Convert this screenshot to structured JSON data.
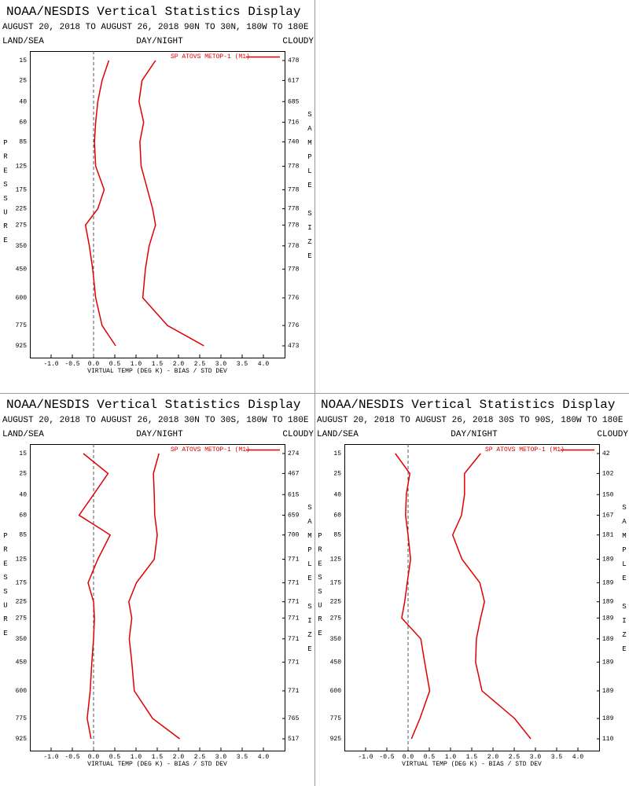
{
  "chart_data": [
    {
      "type": "line",
      "title": "NOAA/NESDIS Vertical Statistics Display",
      "subtitle": "AUGUST 20, 2018 TO AUGUST 26, 2018 90N TO 30N, 180W TO 180E",
      "land_sea_label": "LAND/SEA",
      "day_night_label": "DAY/NIGHT",
      "cloudy_label": "CLOUDY",
      "y_label": "PRESSURE",
      "y2_label": "SAMPLE SIZE",
      "x_label": "VIRTUAL TEMP (DEG K) - BIAS / STD DEV",
      "y": [
        15,
        25,
        40,
        60,
        85,
        125,
        175,
        225,
        275,
        350,
        450,
        600,
        775,
        925
      ],
      "sample_sizes": [
        478,
        617,
        685,
        716,
        740,
        778,
        778,
        778,
        778,
        778,
        778,
        776,
        776,
        473
      ],
      "series": [
        {
          "name": "SP ATOVS METOP-1 (M1)",
          "color": "#e00000",
          "values": [
            0.36,
            0.2,
            0.1,
            0.05,
            0.02,
            0.05,
            0.25,
            0.1,
            -0.19,
            -0.1,
            -0.02,
            0.05,
            0.2,
            0.52
          ],
          "std_dev": [
            1.46,
            1.14,
            1.07,
            1.18,
            1.09,
            1.12,
            1.27,
            1.39,
            1.46,
            1.31,
            1.22,
            1.16,
            1.74,
            2.6
          ]
        }
      ],
      "xlim": [
        -1.5,
        4.5
      ],
      "xticks": [
        {
          "value": -1,
          "label": "-1.0"
        },
        -0.5,
        {
          "value": 0,
          "label": "0.0"
        },
        0.5,
        {
          "value": 1,
          "label": "1.0"
        },
        1.5,
        {
          "value": 2,
          "label": "2.0"
        },
        2.5,
        {
          "value": 3,
          "label": "3.0"
        },
        3.5,
        {
          "value": 4,
          "label": "4.0"
        }
      ]
    },
    {
      "type": "line",
      "title": "NOAA/NESDIS Vertical Statistics Display",
      "subtitle": "AUGUST 20, 2018 TO AUGUST 26, 2018 30N TO 30S, 180W TO 180E",
      "land_sea_label": "LAND/SEA",
      "day_night_label": "DAY/NIGHT",
      "cloudy_label": "CLOUDY",
      "y_label": "PRESSURE",
      "y2_label": "SAMPLE SIZE",
      "x_label": "VIRTUAL TEMP (DEG K) - BIAS / STD DEV",
      "y": [
        15,
        25,
        40,
        60,
        85,
        125,
        175,
        225,
        275,
        350,
        450,
        600,
        775,
        925
      ],
      "sample_sizes": [
        274,
        467,
        615,
        659,
        700,
        771,
        771,
        771,
        771,
        771,
        771,
        771,
        765,
        517
      ],
      "series": [
        {
          "name": "SP ATOVS METOP-1 (M1)",
          "color": "#e00000",
          "values": [
            -0.24,
            0.34,
            0,
            -0.34,
            0.39,
            0.1,
            -0.13,
            0,
            0.02,
            0,
            -0.04,
            -0.08,
            -0.15,
            -0.06
          ],
          "std_dev": [
            1.54,
            1.41,
            1.43,
            1.44,
            1.5,
            1.43,
            1.01,
            0.83,
            0.9,
            0.84,
            0.9,
            0.96,
            1.39,
            2.03
          ]
        }
      ],
      "xlim": [
        -1.5,
        4.5
      ],
      "xticks": [
        {
          "value": -1,
          "label": "-1.0"
        },
        -0.5,
        {
          "value": 0,
          "label": "0.0"
        },
        0.5,
        {
          "value": 1,
          "label": "1.0"
        },
        1.5,
        {
          "value": 2,
          "label": "2.0"
        },
        2.5,
        {
          "value": 3,
          "label": "3.0"
        },
        3.5,
        {
          "value": 4,
          "label": "4.0"
        }
      ]
    },
    {
      "type": "line",
      "title": "NOAA/NESDIS Vertical Statistics Display",
      "subtitle": "AUGUST 20, 2018 TO AUGUST 26, 2018 30S TO 90S, 180W TO 180E",
      "land_sea_label": "LAND/SEA",
      "day_night_label": "DAY/NIGHT",
      "cloudy_label": "CLOUDY",
      "y_label": "PRESSURE",
      "y2_label": "SAMPLE SIZE",
      "x_label": "VIRTUAL TEMP (DEG K) - BIAS / STD DEV",
      "y": [
        15,
        25,
        40,
        60,
        85,
        125,
        175,
        225,
        275,
        350,
        450,
        600,
        775,
        925
      ],
      "sample_sizes": [
        42,
        102,
        150,
        167,
        181,
        189,
        189,
        189,
        189,
        189,
        189,
        189,
        189,
        110
      ],
      "series": [
        {
          "name": "SP ATOVS METOP-1 (M1)",
          "color": "#e00000",
          "values": [
            -0.3,
            0.04,
            -0.04,
            -0.06,
            0,
            0.06,
            -0.02,
            -0.08,
            -0.15,
            0.3,
            0.39,
            0.51,
            0.28,
            0.08
          ],
          "std_dev": [
            1.71,
            1.33,
            1.33,
            1.26,
            1.05,
            1.27,
            1.69,
            1.8,
            1.71,
            1.61,
            1.59,
            1.74,
            2.51,
            2.89
          ]
        }
      ],
      "xlim": [
        -1.5,
        4.5
      ],
      "xticks": [
        {
          "value": -1,
          "label": "-1.0"
        },
        -0.5,
        {
          "value": 0,
          "label": "0.0"
        },
        0.5,
        {
          "value": 1,
          "label": "1.0"
        },
        1.5,
        {
          "value": 2,
          "label": "2.0"
        },
        2.5,
        {
          "value": 3,
          "label": "3.0"
        },
        3.5,
        {
          "value": 4,
          "label": "4.0"
        }
      ]
    }
  ]
}
